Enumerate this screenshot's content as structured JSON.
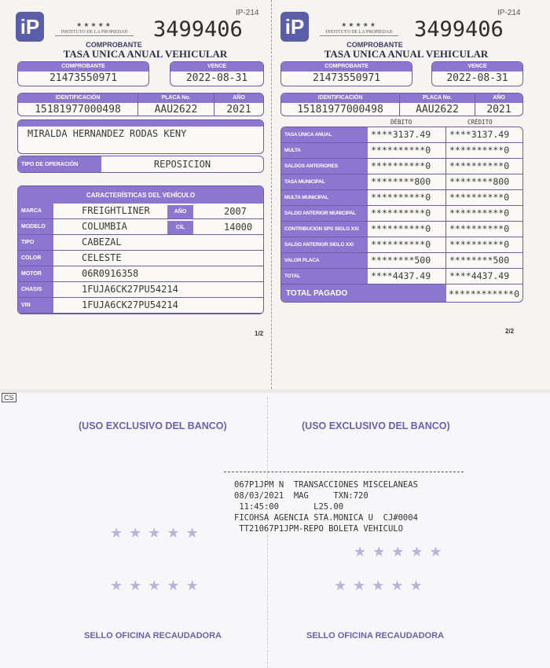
{
  "receipt": {
    "form_code": "IP-214",
    "institution": "INSTITUTO DE LA PROPIEDAD",
    "serial": "3499406",
    "caption": "COMPROBANTE",
    "title": "TASA UNICA ANUAL VEHICULAR",
    "comprobante_label": "COMPROBANTE",
    "comprobante": "21473550971",
    "vence_label": "VENCE",
    "vence": "2022-08-31",
    "ident_label": "IDENTIFICACIÓN",
    "ident": "15181977000498",
    "placa_label": "PLACA No.",
    "placa": "AAU2622",
    "anio_label": "AÑO",
    "anio": "2021",
    "owner": "MIRALDA HERNANDEZ RODAS KENY",
    "tipo_label": "TIPO DE OPERACIÓN",
    "tipo": "REPOSICION",
    "vehicle_header": "CARACTERÍSTICAS DEL VEHÍCULO",
    "vehicle": [
      {
        "label": "MARCA",
        "value": "FREIGHTLINER"
      },
      {
        "label": "MODELO",
        "value": "COLUMBIA"
      },
      {
        "label": "TIPO",
        "value": "CABEZAL"
      },
      {
        "label": "COLOR",
        "value": "CELESTE"
      },
      {
        "label": "MOTOR",
        "value": "06R0916358"
      },
      {
        "label": "CHASIS",
        "value": "1FUJA6CK27PU54214"
      },
      {
        "label": "VIN",
        "value": "1FUJA6CK27PU54214"
      }
    ],
    "veh_anio_label": "AÑO",
    "veh_anio": "2007",
    "cil_label": "CIL",
    "cil": "14000",
    "page1": "1/2",
    "page2": "2/2",
    "debito_label": "DÉBITO",
    "credito_label": "CRÉDITO",
    "charges": [
      {
        "label": "TASA ÚNICA ANUAL",
        "debito": "****3137.49",
        "credito": "****3137.49"
      },
      {
        "label": "MULTA",
        "debito": "**********0",
        "credito": "**********0"
      },
      {
        "label": "SALDOS ANTERIORES",
        "debito": "**********0",
        "credito": "**********0"
      },
      {
        "label": "TASA MUNICIPAL",
        "debito": "********800",
        "credito": "********800"
      },
      {
        "label": "MULTA MUNICIPAL",
        "debito": "**********0",
        "credito": "**********0"
      },
      {
        "label": "SALDO ANTERIOR MUNICIPAL",
        "debito": "**********0",
        "credito": "**********0"
      },
      {
        "label": "CONTRIBUCION SPS SIGLO XXI",
        "debito": "**********0",
        "credito": "**********0"
      },
      {
        "label": "SALDO ANTERIOR SIGLO XXI",
        "debito": "**********0",
        "credito": "**********0"
      },
      {
        "label": "VALOR PLACA",
        "debito": "********500",
        "credito": "********500"
      },
      {
        "label": "TOTAL",
        "debito": "****4437.49",
        "credito": "****4437.49"
      }
    ],
    "total_pagado_label": "TOTAL PAGADO",
    "total_pagado": "************0"
  },
  "bank": {
    "scanner_mark": "CS",
    "exclusive": "(USO EXCLUSIVO DEL BANCO)",
    "stamp": "SELLO OFICINA RECAUDADORA",
    "print": [
      "067P1JPM N  TRANSACCIONES MISCELANEAS",
      "08/03/2021  MAG     TXN:720",
      " 11:45:00       L25.00",
      "FICOHSA AGENCIA STA.MONICA U  CJ#0004",
      " TT21067P1JPM-REPO BOLETA VEHICULO"
    ]
  }
}
